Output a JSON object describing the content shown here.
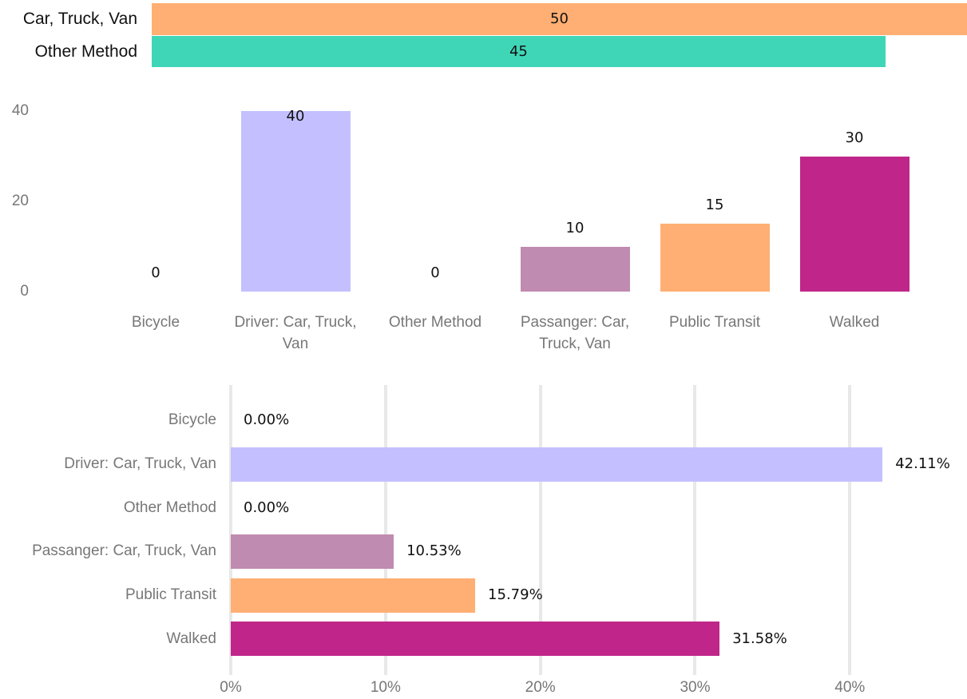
{
  "chart_data": [
    {
      "type": "hbar-bare",
      "categories": [
        "Car, Truck, Van",
        "Other Method"
      ],
      "values": [
        50,
        45
      ],
      "colors": [
        "#FFAF73",
        "#3FD6B8"
      ]
    },
    {
      "type": "bar",
      "categories": [
        "Bicycle",
        "Driver: Car, Truck, Van",
        "Other Method",
        "Passanger: Car, Truck, Van",
        "Public Transit",
        "Walked"
      ],
      "values": [
        0,
        40,
        0,
        10,
        15,
        30
      ],
      "colors": [
        "#5B9BD5",
        "#C4C0FF",
        "#3FD6B8",
        "#C08BB0",
        "#FFAF73",
        "#C0268A"
      ],
      "ylim": [
        0,
        40
      ],
      "yticks": [
        0,
        20,
        40
      ]
    },
    {
      "type": "hbar",
      "categories": [
        "Bicycle",
        "Driver: Car, Truck, Van",
        "Other Method",
        "Passanger: Car, Truck, Van",
        "Public Transit",
        "Walked"
      ],
      "values": [
        0,
        42.11,
        0,
        10.53,
        15.79,
        31.58
      ],
      "value_labels": [
        "0.00%",
        "42.11%",
        "0.00%",
        "10.53%",
        "15.79%",
        "31.58%"
      ],
      "colors": [
        "#5B9BD5",
        "#C4C0FF",
        "#3FD6B8",
        "#C08BB0",
        "#FFAF73",
        "#C0268A"
      ],
      "xlim": [
        0,
        47
      ],
      "xticks": [
        {
          "value": 0,
          "label": "0%"
        },
        {
          "value": 10,
          "label": "10%"
        },
        {
          "value": 20,
          "label": "20%"
        },
        {
          "value": 30,
          "label": "30%"
        },
        {
          "value": 40,
          "label": "40%"
        }
      ],
      "grid": true
    }
  ]
}
